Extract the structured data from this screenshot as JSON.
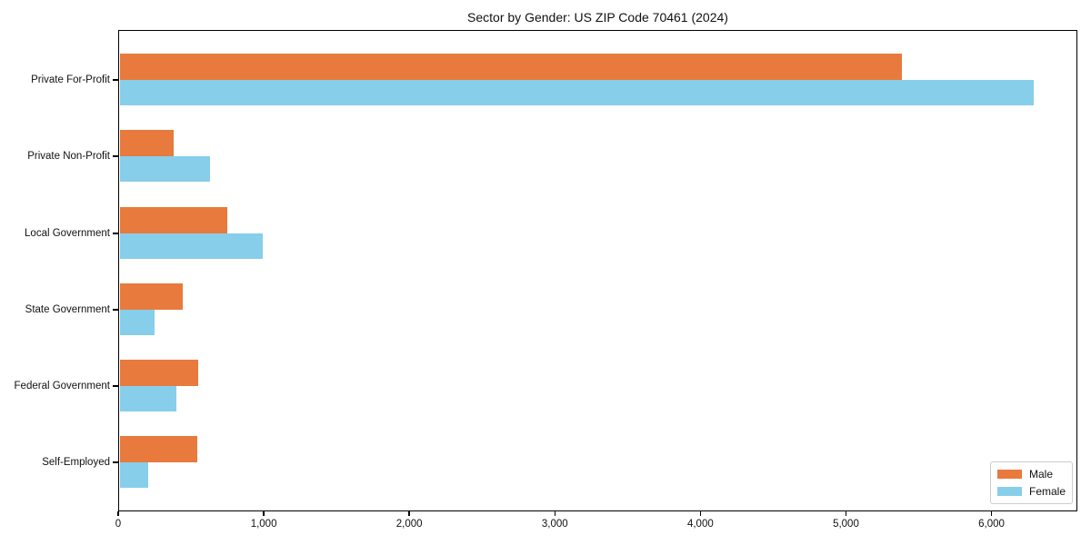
{
  "title": "Sector by Gender: US ZIP Code 70461 (2024)",
  "colors": {
    "male": "#e87a3d",
    "female": "#87ceeb",
    "axis": "#000000",
    "legend_border": "#cccccc",
    "background": "#ffffff"
  },
  "chart_data": {
    "type": "bar",
    "orientation": "horizontal",
    "title": "Sector by Gender: US ZIP Code 70461 (2024)",
    "categories": [
      "Private For-Profit",
      "Private Non-Profit",
      "Local Government",
      "State Government",
      "Federal Government",
      "Self-Employed"
    ],
    "series": [
      {
        "name": "Male",
        "color": "#e87a3d",
        "values": [
          5375,
          370,
          740,
          430,
          540,
          530
        ]
      },
      {
        "name": "Female",
        "color": "#87ceeb",
        "values": [
          6280,
          620,
          980,
          240,
          390,
          195
        ]
      }
    ],
    "xlabel": "",
    "ylabel": "",
    "xlim": [
      0,
      6590
    ],
    "xticks": [
      0,
      1000,
      2000,
      3000,
      4000,
      5000,
      6000
    ],
    "xtick_labels": [
      "0",
      "1,000",
      "2,000",
      "3,000",
      "4,000",
      "5,000",
      "6,000"
    ],
    "grid": false,
    "legend": {
      "position": "lower right",
      "entries": [
        "Male",
        "Female"
      ]
    }
  }
}
